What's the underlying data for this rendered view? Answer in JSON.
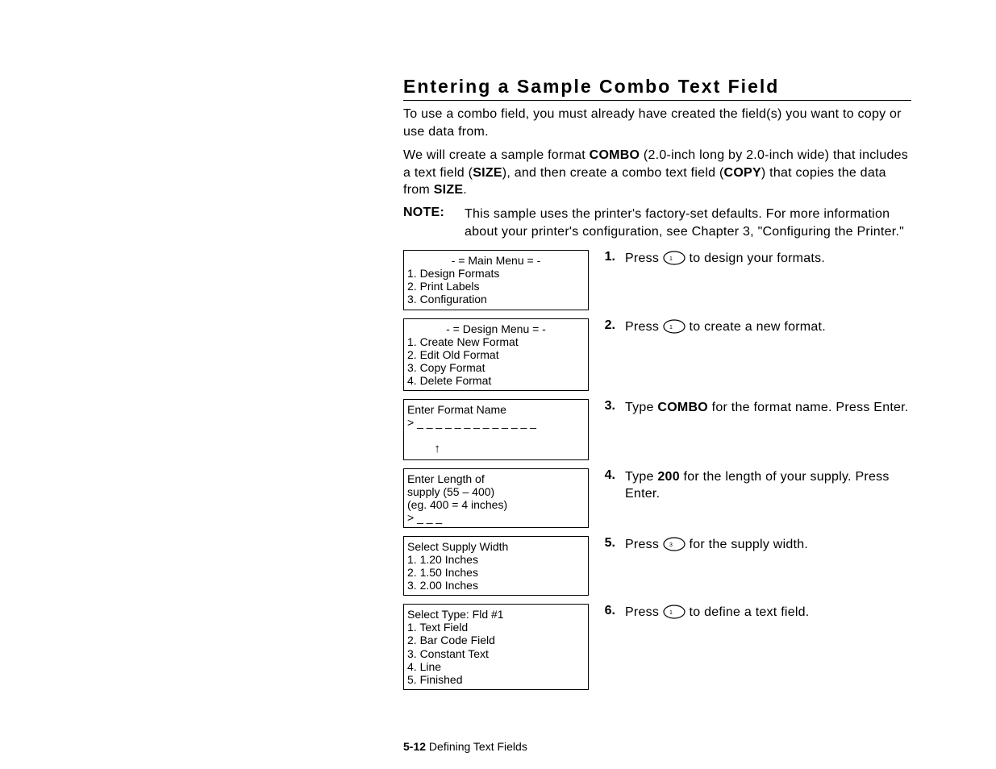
{
  "title": "Entering a Sample Combo Text Field",
  "intro1": "To use a combo field, you must already have created the field(s) you want to copy or use data from.",
  "intro2_pre": "We will create a sample format ",
  "intro2_fmt": "COMBO",
  "intro2_mid": " (2.0-inch long by 2.0-inch wide) that includes a text field (",
  "intro2_fld1": "SIZE",
  "intro2_mid2": "), and then create a combo text field (",
  "intro2_fld2": "COPY",
  "intro2_mid3": ") that copies the data from ",
  "intro2_fld3": "SIZE",
  "intro2_end": ".",
  "note_label": "NOTE:",
  "note_text": "This sample uses the printer's factory-set defaults.  For more information about your printer's configuration, see Chapter 3, \"Configuring the Printer.\"",
  "steps": [
    {
      "num": "1.",
      "key_digit": "1",
      "lcd": {
        "title": "- = Main Menu = -",
        "lines": [
          "1. Design Formats",
          "2. Print Labels",
          "3. Configuration"
        ]
      },
      "text_pre": "Press ",
      "text_post": " to design your formats."
    },
    {
      "num": "2.",
      "key_digit": "1",
      "lcd": {
        "title": "- = Design Menu = -",
        "lines": [
          "1. Create New Format",
          "2. Edit Old Format",
          "3. Copy Format",
          "4. Delete Format"
        ]
      },
      "text_pre": "Press ",
      "text_post": " to create a new format."
    },
    {
      "num": "3.",
      "lcd": {
        "lines": [
          "Enter Format Name",
          "> _ _ _ _ _ _ _ _ _ _ _ _ _"
        ],
        "arrow_indent": "        ↑"
      },
      "text_segments": [
        "Type ",
        "COMBO",
        " for the format name.  Press Enter."
      ]
    },
    {
      "num": "4.",
      "lcd": {
        "lines": [
          "Enter Length of",
          "supply (55 – 400)",
          "(eg. 400 = 4 inches)",
          "> _ _ _"
        ]
      },
      "text_segments": [
        "Type ",
        "200",
        " for the length of your supply.  Press Enter."
      ]
    },
    {
      "num": "5.",
      "key_digit": "3",
      "lcd": {
        "lines": [
          "Select Supply Width",
          "1. 1.20 Inches",
          "2. 1.50 Inches",
          "3. 2.00 Inches"
        ]
      },
      "text_pre": "Press ",
      "text_post": " for the supply width."
    },
    {
      "num": "6.",
      "key_digit": "1",
      "lcd": {
        "lines": [
          "Select Type: Fld #1",
          "1. Text Field",
          "2. Bar Code Field",
          "3. Constant Text",
          "4. Line",
          "5. Finished"
        ]
      },
      "text_pre": "Press ",
      "text_post": " to define a text field."
    }
  ],
  "footer_page": "5-12",
  "footer_text": "  Defining Text Fields"
}
